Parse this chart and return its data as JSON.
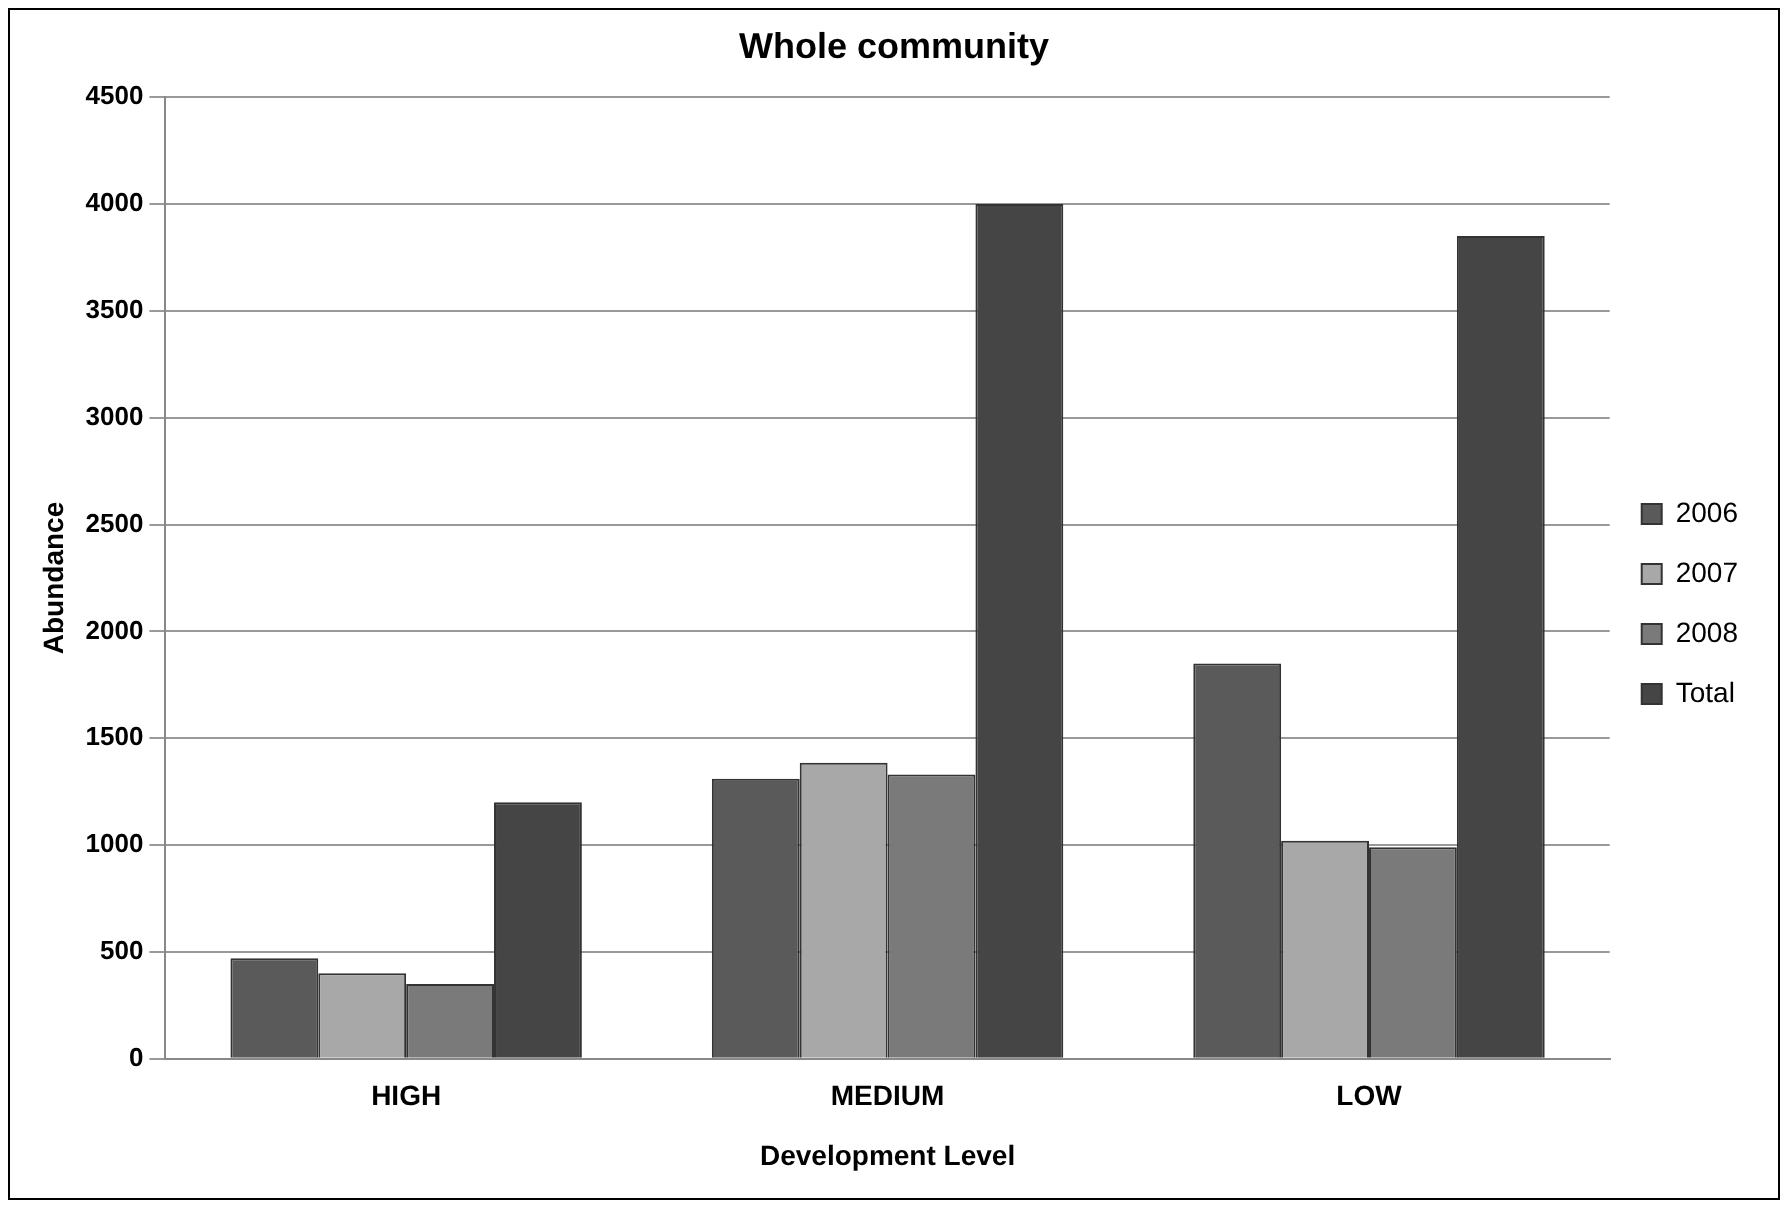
{
  "chart_data": {
    "type": "bar",
    "title": "Whole community",
    "xlabel": "Development Level",
    "ylabel": "Abundance",
    "categories": [
      "HIGH",
      "MEDIUM",
      "LOW"
    ],
    "series": [
      {
        "name": "2006",
        "color": "#5a5a5a",
        "values": [
          470,
          1310,
          1850
        ]
      },
      {
        "name": "2007",
        "color": "#a8a8a8",
        "values": [
          400,
          1385,
          1020
        ]
      },
      {
        "name": "2008",
        "color": "#7a7a7a",
        "values": [
          350,
          1330,
          990
        ]
      },
      {
        "name": "Total",
        "color": "#454545",
        "values": [
          1200,
          4000,
          3850
        ]
      }
    ],
    "ylim": [
      0,
      4500
    ],
    "yticks": [
      0,
      500,
      1000,
      1500,
      2000,
      2500,
      3000,
      3500,
      4000,
      4500
    ],
    "grid": "y",
    "legend": "right"
  }
}
